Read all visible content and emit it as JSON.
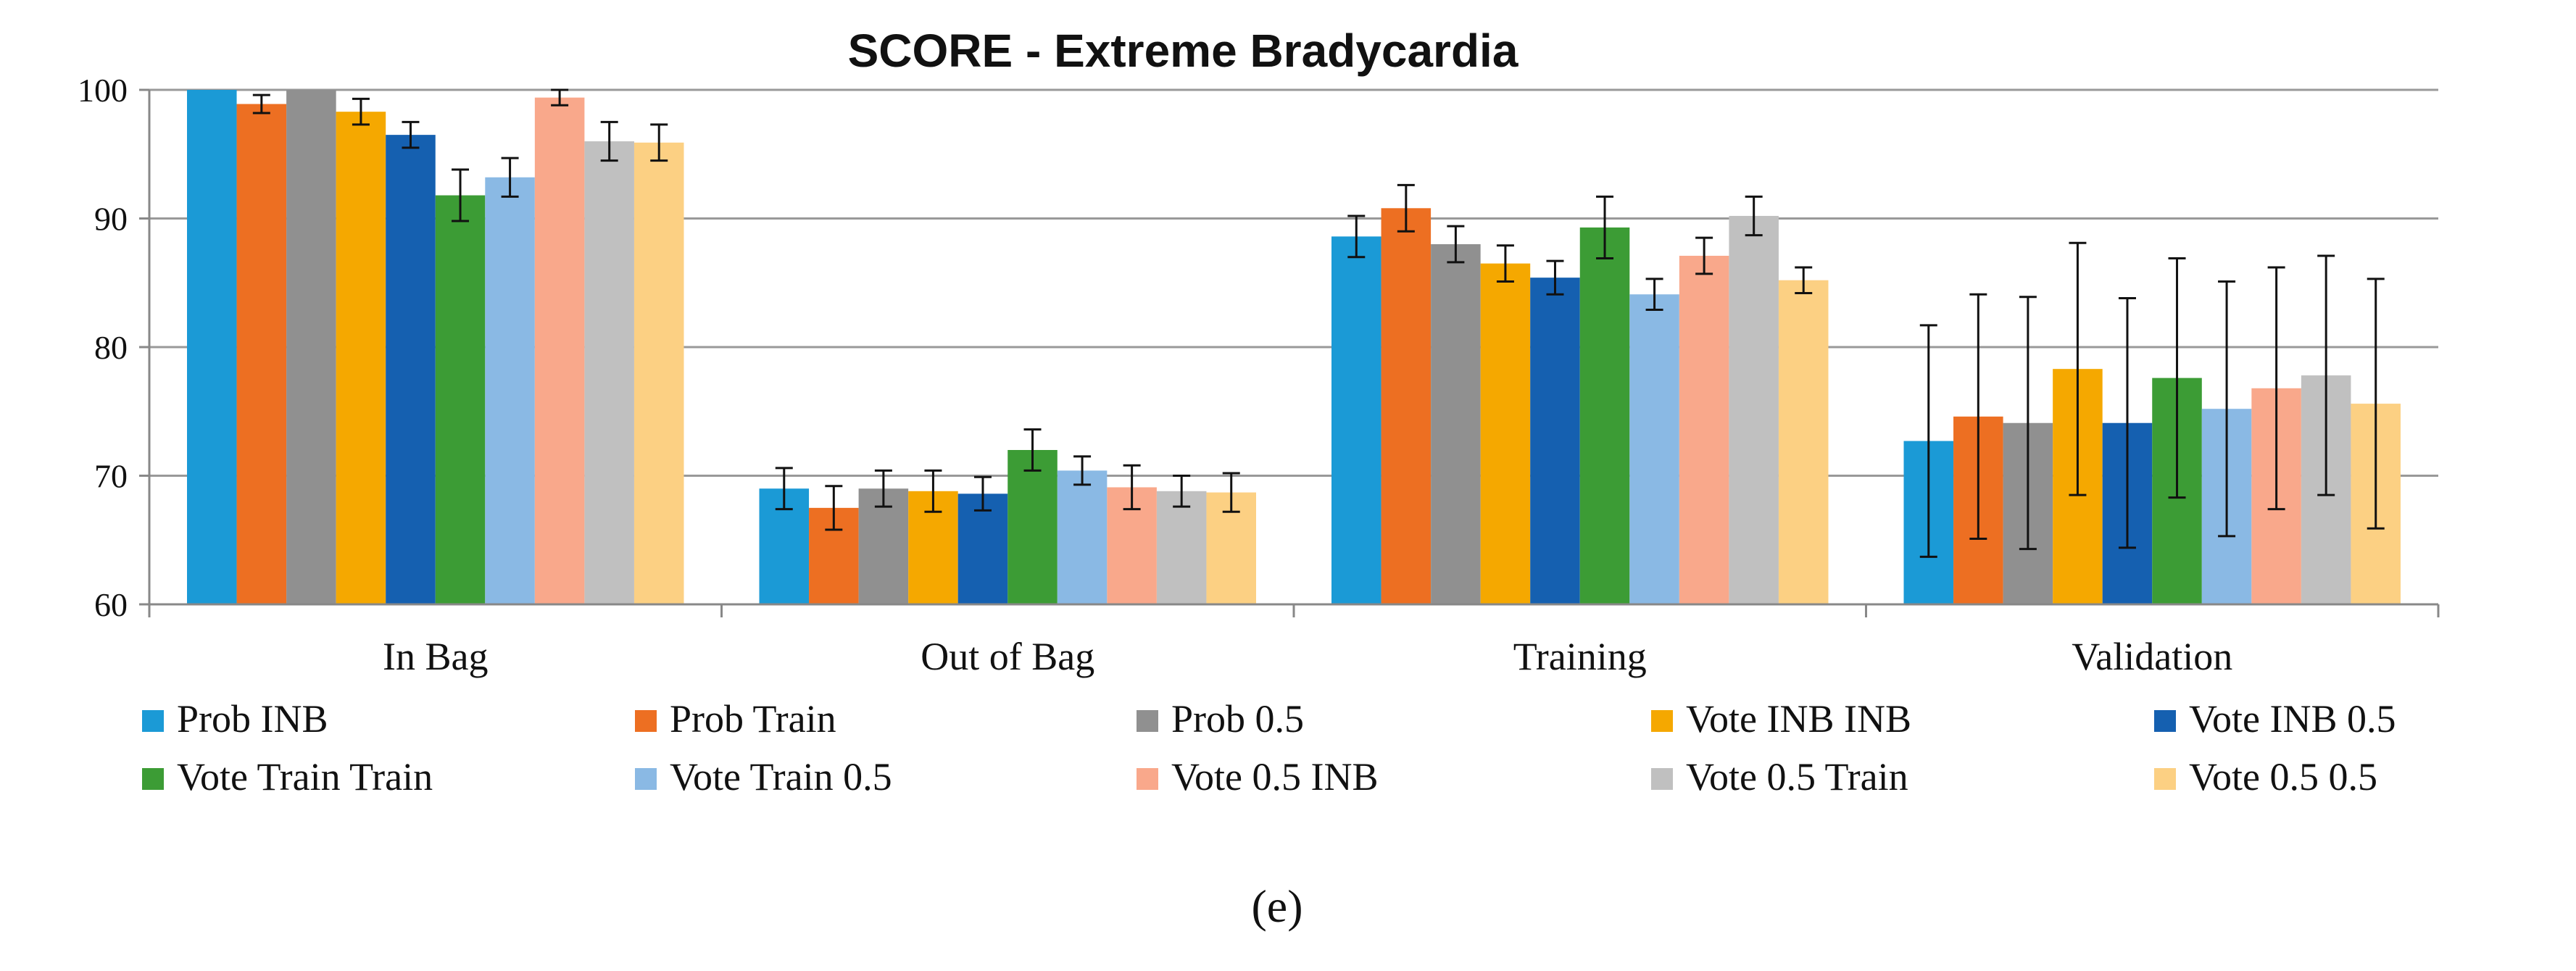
{
  "chart_data": {
    "type": "bar",
    "title": "SCORE - Extreme Bradycardia",
    "xlabel": "",
    "ylabel": "",
    "ylim": [
      60,
      100
    ],
    "yticks": [
      60,
      70,
      80,
      90,
      100
    ],
    "grid": true,
    "legend_position": "bottom",
    "categories": [
      "In Bag",
      "Out of Bag",
      "Training",
      "Validation"
    ],
    "series": [
      {
        "name": "Prob INB",
        "color": "#1b9ad6",
        "values": [
          100,
          69,
          88.6,
          72.7
        ],
        "error": [
          0,
          1.6,
          1.6,
          9.0
        ]
      },
      {
        "name": "Prob Train",
        "color": "#ed6f22",
        "values": [
          98.9,
          67.5,
          90.8,
          74.6
        ],
        "error": [
          0.7,
          1.7,
          1.8,
          9.5
        ]
      },
      {
        "name": "Prob 0.5",
        "color": "#909090",
        "values": [
          100,
          69,
          88.0,
          74.1
        ],
        "error": [
          0,
          1.4,
          1.4,
          9.8
        ]
      },
      {
        "name": "Vote INB INB",
        "color": "#f5a800",
        "values": [
          98.3,
          68.8,
          86.5,
          78.3
        ],
        "error": [
          1.0,
          1.6,
          1.4,
          9.8
        ]
      },
      {
        "name": "Vote INB 0.5",
        "color": "#1560b0",
        "values": [
          96.5,
          68.6,
          85.4,
          74.1
        ],
        "error": [
          1.0,
          1.3,
          1.3,
          9.7
        ]
      },
      {
        "name": "Vote Train Train",
        "color": "#3c9c35",
        "values": [
          91.8,
          72.0,
          89.3,
          77.6
        ],
        "error": [
          2.0,
          1.6,
          2.4,
          9.3
        ]
      },
      {
        "name": "Vote Train 0.5",
        "color": "#8ab9e4",
        "values": [
          93.2,
          70.4,
          84.1,
          75.2
        ],
        "error": [
          1.5,
          1.1,
          1.2,
          9.9
        ]
      },
      {
        "name": "Vote 0.5 INB",
        "color": "#f9a88b",
        "values": [
          99.4,
          69.1,
          87.1,
          76.8
        ],
        "error": [
          0.6,
          1.7,
          1.4,
          9.4
        ]
      },
      {
        "name": "Vote 0.5 Train",
        "color": "#c0c0c0",
        "values": [
          96.0,
          68.8,
          90.2,
          77.8
        ],
        "error": [
          1.5,
          1.2,
          1.5,
          9.3
        ]
      },
      {
        "name": "Vote 0.5 0.5",
        "color": "#fcd083",
        "values": [
          95.9,
          68.7,
          85.2,
          75.6
        ],
        "error": [
          1.4,
          1.5,
          1.0,
          9.7
        ]
      }
    ]
  },
  "caption": "(e)"
}
